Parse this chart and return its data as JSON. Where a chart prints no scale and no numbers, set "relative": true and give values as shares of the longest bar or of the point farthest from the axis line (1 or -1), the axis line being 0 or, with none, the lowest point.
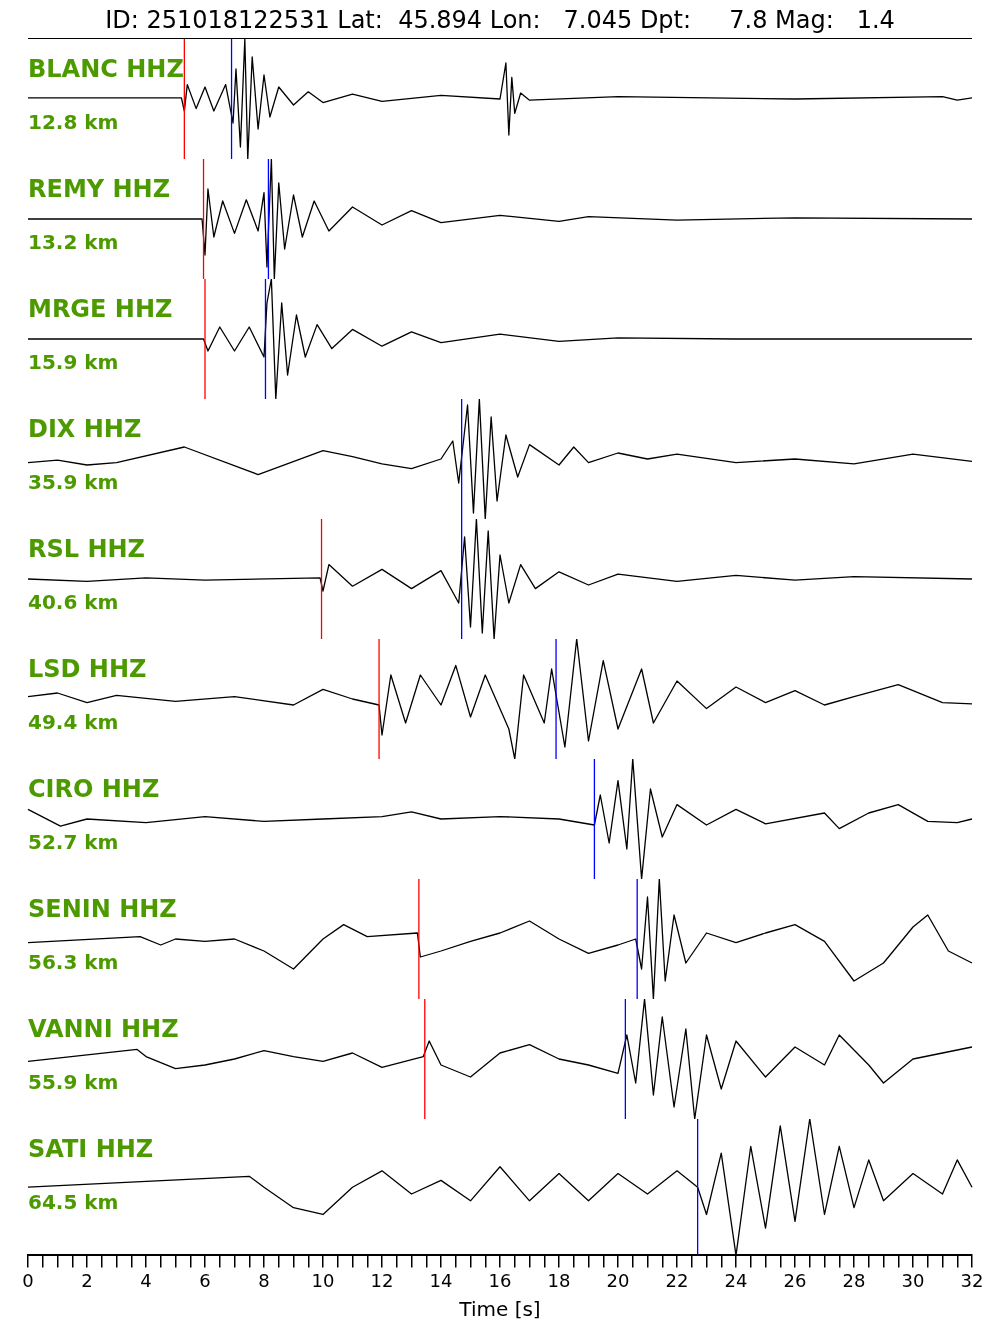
{
  "chart_data": [
    {
      "type": "line",
      "relative": true,
      "title": "ID: 251018122531 Lat:  45.894 Lon:   7.045 Dpt:     7.8 Mag:   1.4",
      "annotations": [
        "BLANC HHZ",
        "12.8 km"
      ],
      "xlim": [
        0,
        32
      ],
      "tick_labels": false,
      "ref_lines": [
        {
          "axis": "x",
          "value": 5.3,
          "color": "#ff0000"
        },
        {
          "axis": "x",
          "value": 6.9,
          "color": "#0000ff"
        }
      ],
      "series": [
        {
          "color": "#000000",
          "x": [
            0,
            5.2,
            5.3,
            5.4,
            5.7,
            6.0,
            6.3,
            6.7,
            6.95,
            7.05,
            7.2,
            7.35,
            7.45,
            7.6,
            7.8,
            8.0,
            8.2,
            8.5,
            9,
            9.5,
            10,
            11,
            12,
            14,
            16,
            16.2,
            16.3,
            16.4,
            16.5,
            16.7,
            17,
            20,
            26,
            31,
            31.5,
            32
          ],
          "values": [
            0.51,
            0.51,
            0.4,
            0.62,
            0.42,
            0.6,
            0.4,
            0.62,
            0.3,
            0.75,
            0.1,
            1.0,
            0.0,
            0.85,
            0.25,
            0.7,
            0.35,
            0.6,
            0.45,
            0.56,
            0.47,
            0.54,
            0.48,
            0.53,
            0.5,
            0.8,
            0.2,
            0.68,
            0.38,
            0.55,
            0.49,
            0.52,
            0.5,
            0.52,
            0.49,
            0.51
          ]
        }
      ]
    },
    {
      "type": "line",
      "relative": true,
      "annotations": [
        "REMY HHZ",
        "13.2 km"
      ],
      "xlim": [
        0,
        32
      ],
      "tick_labels": false,
      "ref_lines": [
        {
          "axis": "x",
          "value": 5.95,
          "color": "#ff0000"
        },
        {
          "axis": "x",
          "value": 8.15,
          "color": "#0000ff"
        }
      ],
      "series": [
        {
          "color": "#000000",
          "x": [
            0,
            5.9,
            6.0,
            6.1,
            6.3,
            6.6,
            7.0,
            7.4,
            7.8,
            8.0,
            8.1,
            8.25,
            8.35,
            8.5,
            8.7,
            9,
            9.3,
            9.7,
            10.2,
            11,
            12,
            13,
            14,
            16,
            18,
            19,
            22,
            26,
            32
          ],
          "values": [
            0.5,
            0.5,
            0.2,
            0.75,
            0.35,
            0.65,
            0.38,
            0.66,
            0.4,
            0.72,
            0.1,
            1.0,
            0.0,
            0.8,
            0.25,
            0.7,
            0.35,
            0.65,
            0.4,
            0.6,
            0.45,
            0.57,
            0.47,
            0.53,
            0.48,
            0.52,
            0.49,
            0.51,
            0.5
          ]
        }
      ]
    },
    {
      "type": "line",
      "relative": true,
      "annotations": [
        "MRGE HHZ",
        "15.9 km"
      ],
      "xlim": [
        0,
        32
      ],
      "tick_labels": false,
      "ref_lines": [
        {
          "axis": "x",
          "value": 6.0,
          "color": "#ff0000"
        },
        {
          "axis": "x",
          "value": 8.05,
          "color": "#0000ff"
        }
      ],
      "series": [
        {
          "color": "#000000",
          "x": [
            0,
            5.95,
            6.1,
            6.5,
            7,
            7.5,
            8.0,
            8.1,
            8.25,
            8.4,
            8.6,
            8.8,
            9.1,
            9.4,
            9.8,
            10.3,
            11,
            12,
            13,
            14,
            16,
            18,
            20,
            24,
            32
          ],
          "values": [
            0.5,
            0.5,
            0.4,
            0.6,
            0.4,
            0.6,
            0.35,
            0.8,
            1.0,
            0.0,
            0.8,
            0.2,
            0.7,
            0.35,
            0.62,
            0.42,
            0.58,
            0.44,
            0.56,
            0.47,
            0.54,
            0.48,
            0.51,
            0.5,
            0.5
          ]
        }
      ]
    },
    {
      "type": "line",
      "relative": true,
      "annotations": [
        "DIX HHZ",
        "35.9 km"
      ],
      "xlim": [
        0,
        32
      ],
      "tick_labels": false,
      "ref_lines": [
        {
          "axis": "x",
          "value": 14.7,
          "color": "#0000ff"
        }
      ],
      "series": [
        {
          "color": "#000000",
          "x": [
            0,
            1,
            2,
            3,
            5.3,
            7.8,
            10,
            11,
            12,
            13,
            14,
            14.4,
            14.6,
            14.9,
            15.1,
            15.3,
            15.5,
            15.7,
            15.9,
            16.2,
            16.6,
            17,
            18,
            18.5,
            19,
            20,
            21,
            22,
            24,
            26,
            28,
            30,
            32
          ],
          "values": [
            0.47,
            0.49,
            0.45,
            0.47,
            0.6,
            0.37,
            0.57,
            0.52,
            0.46,
            0.42,
            0.5,
            0.65,
            0.3,
            0.95,
            0.05,
            1.0,
            0.0,
            0.85,
            0.15,
            0.7,
            0.35,
            0.62,
            0.45,
            0.6,
            0.47,
            0.55,
            0.5,
            0.54,
            0.47,
            0.5,
            0.46,
            0.54,
            0.48
          ]
        }
      ]
    },
    {
      "type": "line",
      "relative": true,
      "annotations": [
        "RSL HHZ",
        "40.6 km"
      ],
      "xlim": [
        0,
        32
      ],
      "tick_labels": false,
      "ref_lines": [
        {
          "axis": "x",
          "value": 9.95,
          "color": "#ff0000"
        },
        {
          "axis": "x",
          "value": 14.7,
          "color": "#0000ff"
        }
      ],
      "series": [
        {
          "color": "#000000",
          "x": [
            0,
            2,
            4,
            6,
            9.9,
            10.0,
            10.2,
            11,
            12,
            13,
            14,
            14.6,
            14.8,
            15.0,
            15.2,
            15.4,
            15.6,
            15.8,
            16.0,
            16.3,
            16.7,
            17.2,
            18,
            19,
            20,
            22,
            24,
            26,
            28,
            32
          ],
          "values": [
            0.5,
            0.48,
            0.51,
            0.49,
            0.51,
            0.4,
            0.62,
            0.44,
            0.58,
            0.42,
            0.57,
            0.3,
            0.85,
            0.1,
            1.0,
            0.05,
            0.9,
            0.0,
            0.7,
            0.3,
            0.62,
            0.42,
            0.56,
            0.45,
            0.54,
            0.48,
            0.53,
            0.49,
            0.52,
            0.5
          ]
        }
      ]
    },
    {
      "type": "line",
      "relative": true,
      "annotations": [
        "LSD HHZ",
        "49.4 km"
      ],
      "xlim": [
        0,
        32
      ],
      "tick_labels": false,
      "ref_lines": [
        {
          "axis": "x",
          "value": 11.9,
          "color": "#ff0000"
        },
        {
          "axis": "x",
          "value": 17.9,
          "color": "#0000ff"
        }
      ],
      "series": [
        {
          "color": "#000000",
          "x": [
            0,
            1,
            2,
            3,
            5,
            7,
            9,
            10,
            11,
            11.9,
            12.0,
            12.3,
            12.8,
            13.3,
            14,
            14.5,
            15,
            15.5,
            16.3,
            16.5,
            16.8,
            17.5,
            17.75,
            18.2,
            18.6,
            19,
            19.5,
            20,
            20.8,
            21.2,
            22,
            23,
            24,
            25,
            26,
            27,
            28,
            29.5,
            31,
            32
          ],
          "values": [
            0.52,
            0.55,
            0.47,
            0.53,
            0.48,
            0.52,
            0.45,
            0.58,
            0.5,
            0.45,
            0.2,
            0.7,
            0.3,
            0.7,
            0.45,
            0.78,
            0.35,
            0.7,
            0.25,
            0.0,
            0.7,
            0.3,
            0.75,
            0.1,
            1.0,
            0.15,
            0.82,
            0.25,
            0.75,
            0.3,
            0.65,
            0.42,
            0.6,
            0.47,
            0.57,
            0.45,
            0.52,
            0.62,
            0.47,
            0.46
          ]
        }
      ]
    },
    {
      "type": "line",
      "relative": true,
      "annotations": [
        "CIRO HHZ",
        "52.7 km"
      ],
      "xlim": [
        0,
        32
      ],
      "tick_labels": false,
      "ref_lines": [
        {
          "axis": "x",
          "value": 19.2,
          "color": "#0000ff"
        }
      ],
      "series": [
        {
          "color": "#000000",
          "x": [
            0,
            1.1,
            2,
            4,
            6,
            8,
            10,
            12,
            13,
            14,
            16,
            18,
            19.2,
            19.4,
            19.7,
            20,
            20.3,
            20.5,
            20.8,
            21.1,
            21.5,
            22,
            23,
            24,
            25,
            27,
            27.5,
            28.5,
            29.5,
            30.5,
            31.5,
            32
          ],
          "values": [
            0.58,
            0.44,
            0.5,
            0.47,
            0.52,
            0.48,
            0.5,
            0.52,
            0.56,
            0.5,
            0.52,
            0.5,
            0.45,
            0.7,
            0.3,
            0.82,
            0.25,
            1.0,
            0.0,
            0.75,
            0.35,
            0.62,
            0.45,
            0.58,
            0.46,
            0.55,
            0.42,
            0.55,
            0.62,
            0.48,
            0.47,
            0.5
          ]
        }
      ]
    },
    {
      "type": "line",
      "relative": true,
      "annotations": [
        "SENIN HHZ",
        "56.3 km"
      ],
      "xlim": [
        0,
        32
      ],
      "tick_labels": false,
      "ref_lines": [
        {
          "axis": "x",
          "value": 13.25,
          "color": "#ff0000"
        },
        {
          "axis": "x",
          "value": 20.65,
          "color": "#0000ff"
        }
      ],
      "series": [
        {
          "color": "#000000",
          "x": [
            0,
            3.8,
            4.5,
            5,
            6,
            7,
            8,
            9,
            10,
            10.7,
            11.5,
            13.2,
            13.3,
            14,
            15,
            16,
            17,
            18,
            19,
            20,
            20.6,
            20.8,
            21.0,
            21.2,
            21.4,
            21.6,
            21.9,
            22.3,
            23,
            24,
            25,
            26,
            27,
            28,
            29,
            30,
            30.5,
            31.2,
            32
          ],
          "values": [
            0.47,
            0.52,
            0.45,
            0.5,
            0.48,
            0.5,
            0.4,
            0.25,
            0.5,
            0.62,
            0.52,
            0.55,
            0.35,
            0.4,
            0.48,
            0.55,
            0.65,
            0.5,
            0.38,
            0.45,
            0.5,
            0.25,
            0.85,
            0.0,
            1.0,
            0.15,
            0.7,
            0.3,
            0.55,
            0.47,
            0.55,
            0.62,
            0.48,
            0.15,
            0.3,
            0.6,
            0.7,
            0.4,
            0.3
          ]
        }
      ]
    },
    {
      "type": "line",
      "relative": true,
      "annotations": [
        "VANNI HHZ",
        "55.9 km"
      ],
      "xlim": [
        0,
        32
      ],
      "tick_labels": false,
      "ref_lines": [
        {
          "axis": "x",
          "value": 13.45,
          "color": "#ff0000"
        },
        {
          "axis": "x",
          "value": 20.25,
          "color": "#0000ff"
        }
      ],
      "series": [
        {
          "color": "#000000",
          "x": [
            0,
            3.7,
            4,
            5,
            6,
            7,
            8,
            9,
            10,
            11,
            12,
            13.4,
            13.6,
            14,
            15,
            16,
            17,
            18,
            19,
            20,
            20.3,
            20.6,
            20.9,
            21.2,
            21.5,
            21.9,
            22.3,
            22.6,
            23,
            23.5,
            24,
            25,
            26,
            27,
            27.5,
            28.5,
            29,
            30,
            31,
            32
          ],
          "values": [
            0.48,
            0.58,
            0.52,
            0.42,
            0.45,
            0.5,
            0.57,
            0.52,
            0.48,
            0.55,
            0.43,
            0.52,
            0.65,
            0.45,
            0.35,
            0.55,
            0.62,
            0.5,
            0.45,
            0.38,
            0.7,
            0.3,
            1.0,
            0.2,
            0.85,
            0.1,
            0.75,
            0.0,
            0.7,
            0.25,
            0.65,
            0.35,
            0.6,
            0.45,
            0.7,
            0.45,
            0.3,
            0.5,
            0.55,
            0.6
          ]
        }
      ]
    },
    {
      "type": "line",
      "relative": true,
      "annotations": [
        "SATI HHZ",
        "64.5 km"
      ],
      "xlim": [
        0,
        32
      ],
      "tick_labels": "x",
      "xlabel": "Time [s]",
      "xticks": [
        0,
        {
          "value": 0.5,
          "label": null
        },
        {
          "value": 1,
          "label": null
        },
        {
          "value": 1.5,
          "label": null
        },
        2,
        {
          "value": 2.5,
          "label": null
        },
        {
          "value": 3,
          "label": null
        },
        {
          "value": 3.5,
          "label": null
        },
        4,
        {
          "value": 4.5,
          "label": null
        },
        {
          "value": 5,
          "label": null
        },
        {
          "value": 5.5,
          "label": null
        },
        6,
        {
          "value": 6.5,
          "label": null
        },
        {
          "value": 7,
          "label": null
        },
        {
          "value": 7.5,
          "label": null
        },
        8,
        {
          "value": 8.5,
          "label": null
        },
        {
          "value": 9,
          "label": null
        },
        {
          "value": 9.5,
          "label": null
        },
        10,
        {
          "value": 10.5,
          "label": null
        },
        {
          "value": 11,
          "label": null
        },
        {
          "value": 11.5,
          "label": null
        },
        12,
        {
          "value": 12.5,
          "label": null
        },
        {
          "value": 13,
          "label": null
        },
        {
          "value": 13.5,
          "label": null
        },
        14,
        {
          "value": 14.5,
          "label": null
        },
        {
          "value": 15,
          "label": null
        },
        {
          "value": 15.5,
          "label": null
        },
        16,
        {
          "value": 16.5,
          "label": null
        },
        {
          "value": 17,
          "label": null
        },
        {
          "value": 17.5,
          "label": null
        },
        18,
        {
          "value": 18.5,
          "label": null
        },
        {
          "value": 19,
          "label": null
        },
        {
          "value": 19.5,
          "label": null
        },
        20,
        {
          "value": 20.5,
          "label": null
        },
        {
          "value": 21,
          "label": null
        },
        {
          "value": 21.5,
          "label": null
        },
        22,
        {
          "value": 22.5,
          "label": null
        },
        {
          "value": 23,
          "label": null
        },
        {
          "value": 23.5,
          "label": null
        },
        24,
        {
          "value": 24.5,
          "label": null
        },
        {
          "value": 25,
          "label": null
        },
        {
          "value": 25.5,
          "label": null
        },
        26,
        {
          "value": 26.5,
          "label": null
        },
        {
          "value": 27,
          "label": null
        },
        {
          "value": 27.5,
          "label": null
        },
        28,
        {
          "value": 28.5,
          "label": null
        },
        {
          "value": 29,
          "label": null
        },
        {
          "value": 29.5,
          "label": null
        },
        30,
        {
          "value": 30.5,
          "label": null
        },
        {
          "value": 31,
          "label": null
        },
        {
          "value": 31.5,
          "label": null
        },
        32
      ],
      "ref_lines": [
        {
          "axis": "x",
          "value": 22.7,
          "color": "#0000ff"
        }
      ],
      "series": [
        {
          "color": "#000000",
          "x": [
            0,
            7.5,
            8,
            9,
            10,
            11,
            12,
            13,
            14,
            15,
            16,
            17,
            18,
            19,
            20,
            21,
            22,
            22.7,
            23,
            23.5,
            24,
            24.5,
            25,
            25.5,
            26,
            26.5,
            27,
            27.5,
            28,
            28.5,
            29,
            30,
            31,
            31.5,
            32
          ],
          "values": [
            0.5,
            0.58,
            0.5,
            0.35,
            0.3,
            0.5,
            0.62,
            0.45,
            0.55,
            0.4,
            0.65,
            0.4,
            0.6,
            0.4,
            0.6,
            0.45,
            0.62,
            0.5,
            0.3,
            0.75,
            0.0,
            0.8,
            0.2,
            0.95,
            0.25,
            1.0,
            0.3,
            0.8,
            0.35,
            0.7,
            0.4,
            0.6,
            0.45,
            0.7,
            0.5
          ]
        }
      ]
    }
  ]
}
